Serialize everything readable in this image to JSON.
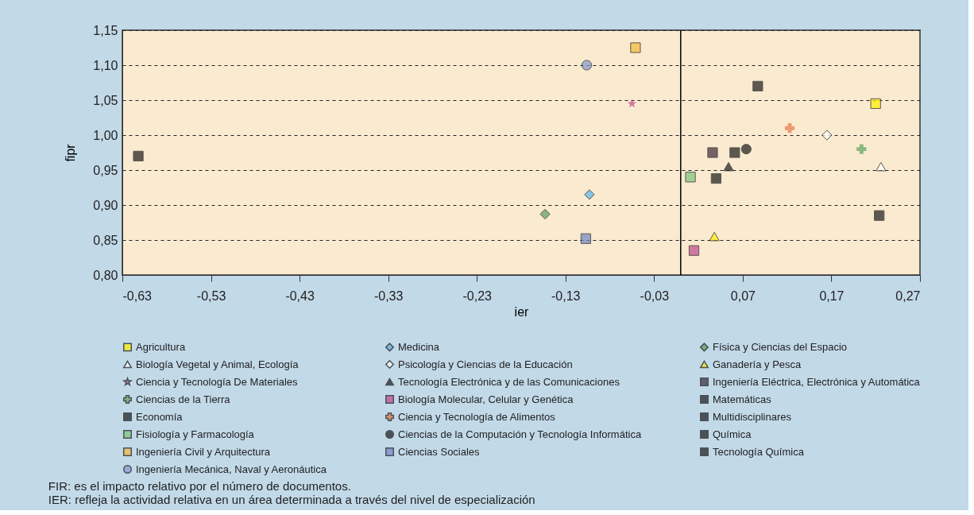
{
  "chart_data": {
    "type": "scatter",
    "xlabel": "ier",
    "ylabel": "fipr",
    "xlim": [
      -0.63,
      0.27
    ],
    "ylim": [
      0.8,
      1.15
    ],
    "xticks": [
      {
        "value": -0.63,
        "label": "-0,63"
      },
      {
        "value": -0.53,
        "label": "-0,53"
      },
      {
        "value": -0.43,
        "label": "-0,43"
      },
      {
        "value": -0.33,
        "label": "-0,33"
      },
      {
        "value": -0.23,
        "label": "-0,23"
      },
      {
        "value": -0.13,
        "label": "-0,13"
      },
      {
        "value": -0.03,
        "label": "-0,03"
      },
      {
        "value": 0.07,
        "label": "0,07"
      },
      {
        "value": 0.17,
        "label": "0,17"
      },
      {
        "value": 0.27,
        "label": "0,27"
      }
    ],
    "yticks": [
      {
        "value": 0.8,
        "label": "0,80"
      },
      {
        "value": 0.85,
        "label": "0,85"
      },
      {
        "value": 0.9,
        "label": "0,90"
      },
      {
        "value": 0.95,
        "label": "0,95"
      },
      {
        "value": 1.0,
        "label": "1,00"
      },
      {
        "value": 1.05,
        "label": "1,05"
      },
      {
        "value": 1.1,
        "label": "1,10"
      },
      {
        "value": 1.15,
        "label": "1,15"
      }
    ],
    "grid": "y",
    "legend": "bottom",
    "ref_lines": [
      {
        "axis": "x",
        "value": 0,
        "color": "#000000"
      }
    ],
    "series": [
      {
        "name": "Agricultura",
        "color": "#ffee00",
        "marker": "square",
        "x": [
          0.22
        ],
        "values": [
          1.045
        ]
      },
      {
        "name": "Medicina",
        "color": "#56b4e9",
        "marker": "diamond",
        "x": [
          -0.103
        ],
        "values": [
          0.915
        ]
      },
      {
        "name": "Física y Ciencias del Espacio",
        "color": "#5a9e5a",
        "marker": "diamond",
        "x": [
          -0.153
        ],
        "values": [
          0.887
        ]
      },
      {
        "name": "Biología Vegetal y Animal, Ecología",
        "color": "#ffffff",
        "marker": "triangle",
        "x": [
          0.226
        ],
        "values": [
          0.955
        ]
      },
      {
        "name": "Psicología y Ciencias de la Educación",
        "color": "#ffffff",
        "marker": "diamond",
        "x": [
          0.165
        ],
        "values": [
          1.0
        ]
      },
      {
        "name": "Ganadería y Pesca",
        "color": "#ffee00",
        "marker": "triangle",
        "x": [
          0.038
        ],
        "values": [
          0.855
        ]
      },
      {
        "name": "Ciencia y Tecnología De Materiales",
        "color": "#c0478e",
        "marker": "star",
        "x": [
          -0.055
        ],
        "values": [
          1.045
        ]
      },
      {
        "name": "Tecnología Electrónica y de las Comunicaciones",
        "color": "#1a1a1a",
        "marker": "triangle",
        "x": [
          0.054
        ],
        "values": [
          0.955
        ]
      },
      {
        "name": "Ingeniería Eléctrica, Electrónica y Automática",
        "color": "#3a2a38",
        "marker": "square",
        "x": [
          0.036
        ],
        "values": [
          0.975
        ]
      },
      {
        "name": "Ciencias de la Tierra",
        "color": "#5aa55a",
        "marker": "cross",
        "x": [
          0.204
        ],
        "values": [
          0.98
        ]
      },
      {
        "name": "Biología Molecular, Celular y Genética",
        "color": "#c0478e",
        "marker": "square",
        "x": [
          0.015
        ],
        "values": [
          0.835
        ]
      },
      {
        "name": "Matemáticas",
        "color": "#1a1a1a",
        "marker": "square",
        "x": [
          0.224
        ],
        "values": [
          0.885
        ]
      },
      {
        "name": "Economía",
        "color": "#1a1a1a",
        "marker": "square",
        "x": [
          -0.612
        ],
        "values": [
          0.97
        ]
      },
      {
        "name": "Ciencia y Tecnología de Alimentos",
        "color": "#e8784a",
        "marker": "cross",
        "x": [
          0.123
        ],
        "values": [
          1.01
        ]
      },
      {
        "name": "Multidisciplinares",
        "color": "#1a1a1a",
        "marker": "square",
        "x": [
          0.061
        ],
        "values": [
          0.975
        ]
      },
      {
        "name": "Fisiología y Farmacología",
        "color": "#7bc47a",
        "marker": "square",
        "x": [
          0.011
        ],
        "values": [
          0.94
        ]
      },
      {
        "name": "Ciencias de la Computación y Tecnología Informática",
        "color": "#1a1a1a",
        "marker": "circle",
        "x": [
          0.074
        ],
        "values": [
          0.98
        ]
      },
      {
        "name": "Química",
        "color": "#1a1a1a",
        "marker": "square",
        "x": [
          0.04
        ],
        "values": [
          0.938
        ]
      },
      {
        "name": "Ingeniería Civil y Arquitectura",
        "color": "#f5b93a",
        "marker": "square",
        "x": [
          -0.051
        ],
        "values": [
          1.125
        ]
      },
      {
        "name": "Ciencias Sociales",
        "color": "#6f86c6",
        "marker": "square",
        "x": [
          -0.107
        ],
        "values": [
          0.852
        ]
      },
      {
        "name": "Tecnología Química",
        "color": "#1a1a1a",
        "marker": "square",
        "x": [
          0.087
        ],
        "values": [
          1.07
        ]
      },
      {
        "name": "Ingeniería Mecánica, Naval y Aeronáutica",
        "color": "#8496cf",
        "marker": "circle",
        "x": [
          -0.106
        ],
        "values": [
          1.1
        ]
      }
    ],
    "annotations": [
      "FIR: es el impacto relativo por el número de documentos.",
      "IER: refleja la actividad relativa en un área determinada a través del nivel de especialización"
    ]
  }
}
